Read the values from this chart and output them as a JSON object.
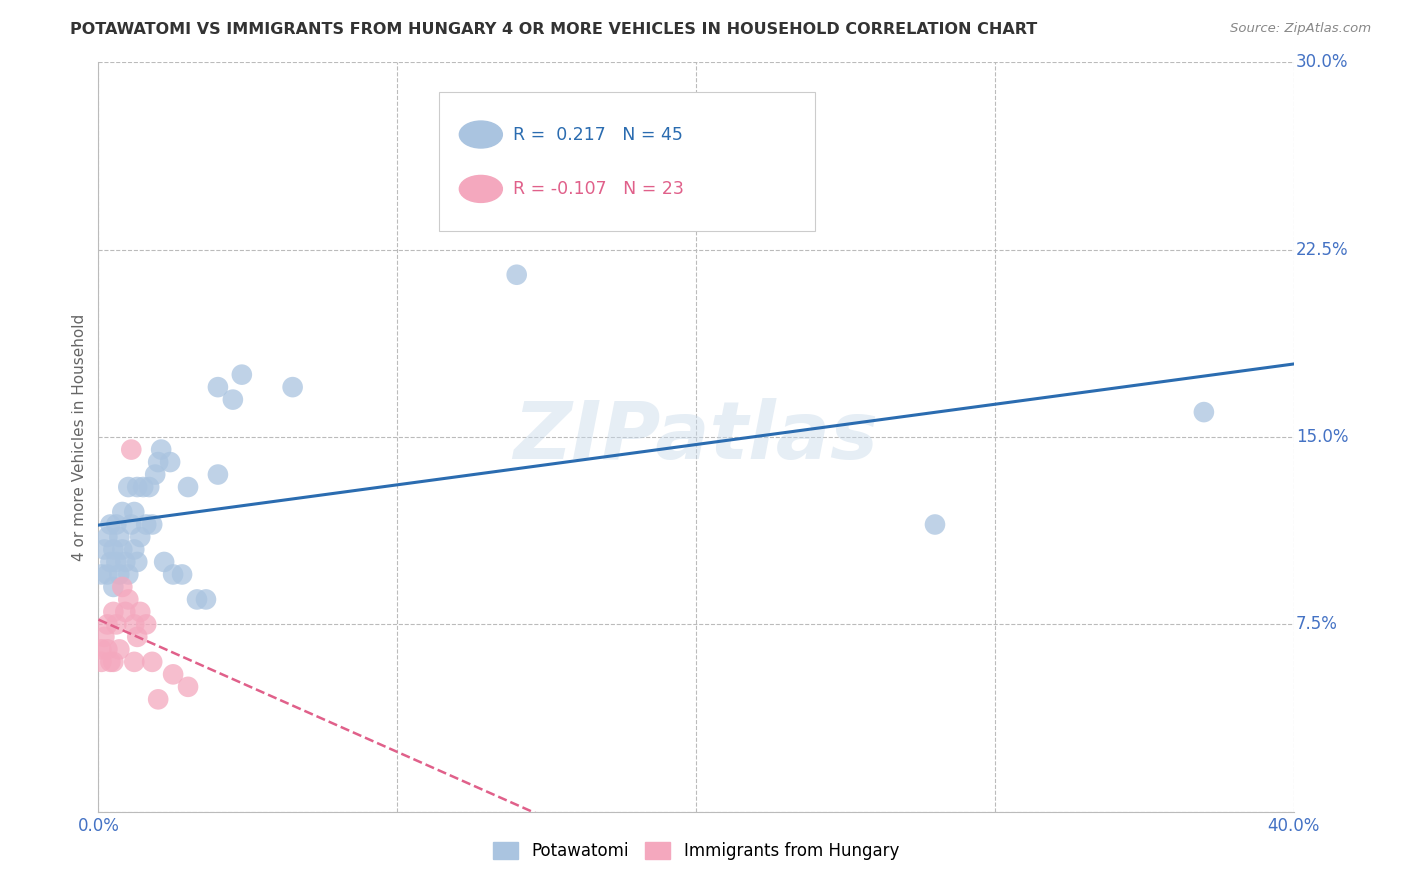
{
  "title": "POTAWATOMI VS IMMIGRANTS FROM HUNGARY 4 OR MORE VEHICLES IN HOUSEHOLD CORRELATION CHART",
  "source": "Source: ZipAtlas.com",
  "ylabel": "4 or more Vehicles in Household",
  "xlim": [
    0.0,
    0.4
  ],
  "ylim": [
    0.0,
    0.3
  ],
  "xticks": [
    0.0,
    0.1,
    0.2,
    0.3,
    0.4
  ],
  "xticklabels_ends": [
    "0.0%",
    "40.0%"
  ],
  "yticks": [
    0.0,
    0.075,
    0.15,
    0.225,
    0.3
  ],
  "yticklabels": [
    "",
    "7.5%",
    "15.0%",
    "22.5%",
    "30.0%"
  ],
  "background_color": "#ffffff",
  "grid_color": "#bbbbbb",
  "series1_name": "Potawatomi",
  "series1_color": "#aac4e0",
  "series1_line_color": "#2b6cb0",
  "series1_R": 0.217,
  "series1_N": 45,
  "series2_name": "Immigrants from Hungary",
  "series2_color": "#f4a8be",
  "series2_line_color": "#e0608a",
  "series2_R": -0.107,
  "series2_N": 23,
  "watermark": "ZIPatlas",
  "tick_color": "#4472c4",
  "potawatomi_x": [
    0.001,
    0.002,
    0.003,
    0.003,
    0.004,
    0.004,
    0.005,
    0.005,
    0.006,
    0.006,
    0.007,
    0.007,
    0.008,
    0.008,
    0.009,
    0.01,
    0.01,
    0.011,
    0.012,
    0.012,
    0.013,
    0.013,
    0.014,
    0.015,
    0.016,
    0.017,
    0.018,
    0.019,
    0.02,
    0.021,
    0.022,
    0.024,
    0.025,
    0.028,
    0.03,
    0.033,
    0.036,
    0.04,
    0.04,
    0.045,
    0.048,
    0.065,
    0.14,
    0.28,
    0.37
  ],
  "potawatomi_y": [
    0.095,
    0.105,
    0.11,
    0.095,
    0.1,
    0.115,
    0.105,
    0.09,
    0.1,
    0.115,
    0.095,
    0.11,
    0.105,
    0.12,
    0.1,
    0.095,
    0.13,
    0.115,
    0.105,
    0.12,
    0.1,
    0.13,
    0.11,
    0.13,
    0.115,
    0.13,
    0.115,
    0.135,
    0.14,
    0.145,
    0.1,
    0.14,
    0.095,
    0.095,
    0.13,
    0.085,
    0.085,
    0.17,
    0.135,
    0.165,
    0.175,
    0.17,
    0.215,
    0.115,
    0.16
  ],
  "hungary_x": [
    0.001,
    0.001,
    0.002,
    0.003,
    0.003,
    0.004,
    0.005,
    0.005,
    0.006,
    0.007,
    0.008,
    0.009,
    0.01,
    0.011,
    0.012,
    0.012,
    0.013,
    0.014,
    0.016,
    0.018,
    0.02,
    0.025,
    0.03
  ],
  "hungary_y": [
    0.065,
    0.06,
    0.07,
    0.075,
    0.065,
    0.06,
    0.08,
    0.06,
    0.075,
    0.065,
    0.09,
    0.08,
    0.085,
    0.145,
    0.075,
    0.06,
    0.07,
    0.08,
    0.075,
    0.06,
    0.045,
    0.055,
    0.05
  ]
}
